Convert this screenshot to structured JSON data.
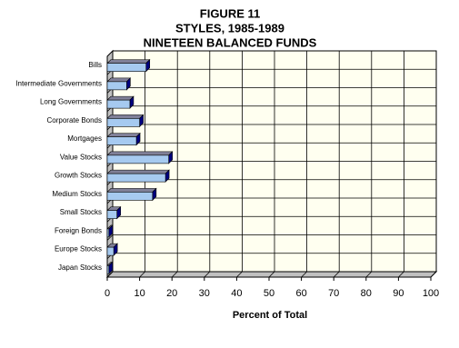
{
  "chart_data": {
    "type": "bar",
    "orientation": "horizontal",
    "title": [
      "FIGURE 11",
      "STYLES, 1985-1989",
      "NINETEEN BALANCED FUNDS"
    ],
    "xlabel": "Percent of Total",
    "categories": [
      "Bills",
      "Intermediate Governments",
      "Long Governments",
      "Corporate Bonds",
      "Mortgages",
      "Value Stocks",
      "Growth Stocks",
      "Medium Stocks",
      "Small Stocks",
      "Foreign Bonds",
      "Europe Stocks",
      "Japan Stocks"
    ],
    "values": [
      12,
      6,
      7,
      10,
      9,
      19,
      18,
      14,
      3,
      0.5,
      2,
      0.5
    ],
    "color": "#a6caf0",
    "xlim": [
      0,
      100
    ],
    "xticks": [
      0,
      10,
      20,
      30,
      40,
      50,
      60,
      70,
      80,
      90,
      100
    ],
    "grid": true
  }
}
